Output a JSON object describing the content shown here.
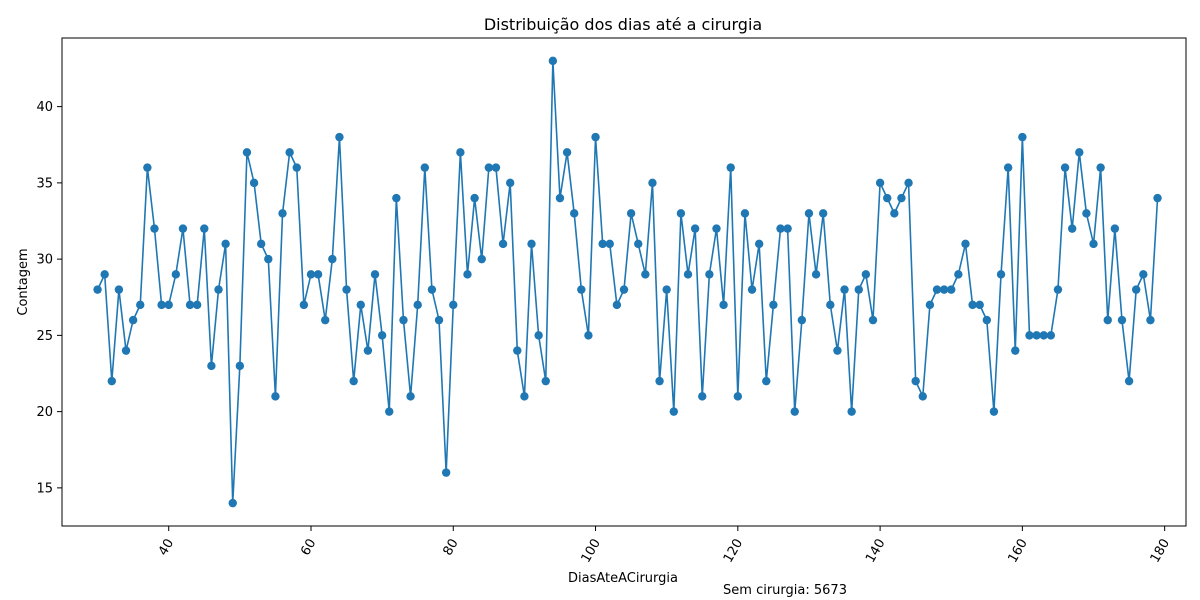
{
  "chart_data": {
    "type": "line",
    "title": "Distribuição dos dias até a cirurgia",
    "xlabel": "DiasAteACirurgia",
    "ylabel": "Contagem",
    "xlim": [
      25,
      183
    ],
    "ylim": [
      12.5,
      44.5
    ],
    "x_ticks": [
      40,
      60,
      80,
      100,
      120,
      140,
      160,
      180
    ],
    "y_ticks": [
      15,
      20,
      25,
      30,
      35,
      40
    ],
    "x_tick_rotation_deg": 60,
    "grid": false,
    "legend": "none",
    "line_color": "#1f77b4",
    "marker": "circle",
    "x": [
      30,
      31,
      32,
      33,
      34,
      35,
      36,
      37,
      38,
      39,
      40,
      41,
      42,
      43,
      44,
      45,
      46,
      47,
      48,
      49,
      50,
      51,
      52,
      53,
      54,
      55,
      56,
      57,
      58,
      59,
      60,
      61,
      62,
      63,
      64,
      65,
      66,
      67,
      68,
      69,
      70,
      71,
      72,
      73,
      74,
      75,
      76,
      77,
      78,
      79,
      80,
      81,
      82,
      83,
      84,
      85,
      86,
      87,
      88,
      89,
      90,
      91,
      92,
      93,
      94,
      95,
      96,
      97,
      98,
      99,
      100,
      101,
      102,
      103,
      104,
      105,
      106,
      107,
      108,
      109,
      110,
      111,
      112,
      113,
      114,
      115,
      116,
      117,
      118,
      119,
      120,
      121,
      122,
      123,
      124,
      125,
      126,
      127,
      128,
      129,
      130,
      131,
      132,
      133,
      134,
      135,
      136,
      137,
      138,
      139,
      140,
      141,
      142,
      143,
      144,
      145,
      146,
      147,
      148,
      149,
      150,
      151,
      152,
      153,
      154,
      155,
      156,
      157,
      158,
      159,
      160,
      161,
      162,
      163,
      164,
      165,
      166,
      167,
      168,
      169,
      170,
      171,
      172,
      173,
      174,
      175,
      176,
      177,
      178,
      179
    ],
    "y": [
      28,
      29,
      22,
      28,
      24,
      26,
      27,
      36,
      32,
      27,
      27,
      29,
      32,
      27,
      27,
      32,
      23,
      28,
      31,
      14,
      23,
      37,
      35,
      31,
      30,
      21,
      33,
      37,
      36,
      27,
      29,
      29,
      26,
      30,
      38,
      28,
      22,
      27,
      24,
      29,
      25,
      20,
      34,
      26,
      21,
      27,
      36,
      28,
      26,
      16,
      27,
      37,
      29,
      34,
      30,
      36,
      36,
      31,
      35,
      24,
      21,
      31,
      25,
      22,
      43,
      34,
      37,
      33,
      28,
      25,
      38,
      31,
      31,
      27,
      28,
      33,
      31,
      29,
      35,
      22,
      28,
      20,
      33,
      29,
      32,
      21,
      29,
      32,
      27,
      36,
      21,
      33,
      28,
      31,
      22,
      27,
      32,
      32,
      20,
      26,
      33,
      29,
      33,
      27,
      24,
      28,
      20,
      28,
      29,
      26,
      35,
      34,
      33,
      34,
      35,
      22,
      21,
      27,
      28,
      28,
      28,
      29,
      31,
      27,
      27,
      26,
      20,
      29,
      36,
      24,
      38,
      25,
      25,
      25,
      25,
      28,
      36,
      32,
      37,
      33,
      31,
      36,
      26,
      32,
      26,
      22,
      28,
      29,
      26,
      34
    ]
  },
  "annotation": "Sem cirurgia: 5673"
}
